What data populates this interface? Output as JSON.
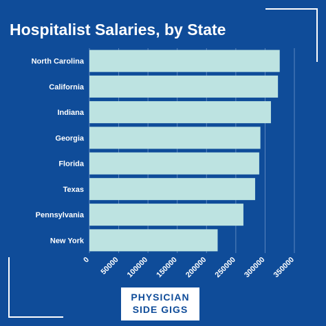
{
  "title": "Hospitalist Salaries, by State",
  "logo": {
    "line1": "PHYSICIAN",
    "line2": "SIDE GIGS"
  },
  "colors": {
    "background": "#0f4c99",
    "bar": "#bde3e1",
    "text": "#ffffff",
    "grid": "#5b86bf"
  },
  "chart_data": {
    "type": "bar",
    "orientation": "horizontal",
    "title": "Hospitalist Salaries, by State",
    "categories": [
      "North Carolina",
      "California",
      "Indiana",
      "Georgia",
      "Florida",
      "Texas",
      "Pennsylvania",
      "New York"
    ],
    "values": [
      325000,
      322000,
      310000,
      292000,
      290000,
      283000,
      263000,
      219000
    ],
    "xlim": [
      0,
      350000
    ],
    "xticks": [
      "0",
      "50000",
      "100000",
      "150000",
      "200000",
      "250000",
      "300000",
      "350000"
    ],
    "grid": true
  }
}
